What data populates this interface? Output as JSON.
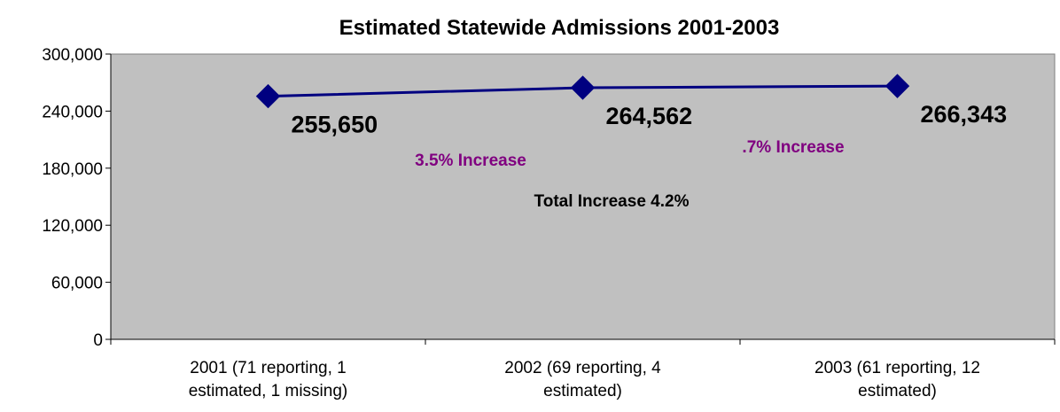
{
  "chart_data": {
    "type": "line",
    "title": "Estimated Statewide Admissions 2001-2003",
    "xlabel": "",
    "ylabel": "",
    "categories": [
      [
        "2001 (71 reporting, 1",
        "estimated, 1 missing)"
      ],
      [
        "2002 (69 reporting, 4",
        "estimated)"
      ],
      [
        "2003 (61 reporting, 12",
        "estimated)"
      ]
    ],
    "series": [
      {
        "values": [
          255650,
          264562,
          266343
        ]
      }
    ],
    "data_labels": [
      "255,650",
      "264,562",
      "266,343"
    ],
    "ylim": [
      0,
      300000
    ],
    "yticks": [
      0,
      60000,
      120000,
      180000,
      240000,
      300000
    ],
    "ytick_labels": [
      "0",
      "60,000",
      "120,000",
      "180,000",
      "240,000",
      "300,000"
    ],
    "annotations": [
      {
        "text": "3.5% Increase",
        "color": "#800080"
      },
      {
        "text": ".7% Increase",
        "color": "#800080"
      },
      {
        "text": "Total Increase 4.2%",
        "color": "#000000"
      }
    ],
    "colors": {
      "plot_bg": "#c0c0c0",
      "line": "#000080",
      "marker": "#000080"
    },
    "grid": false,
    "legend": "none"
  }
}
